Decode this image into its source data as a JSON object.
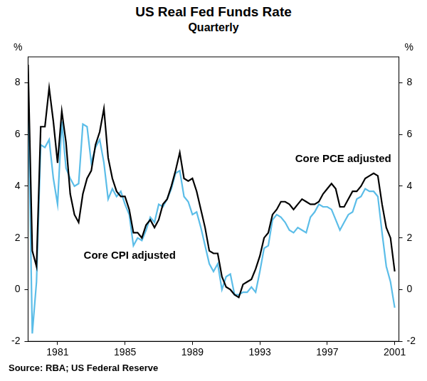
{
  "chart_data": {
    "type": "line",
    "title": "US Real Fed Funds Rate",
    "subtitle": "Quarterly",
    "source": "Source: RBA; US Federal Reserve",
    "y_label": "%",
    "y2_label": "%",
    "x": [
      1979.75,
      1980.0,
      1980.25,
      1980.5,
      1980.75,
      1981.0,
      1981.25,
      1981.5,
      1981.75,
      1982.0,
      1982.25,
      1982.5,
      1982.75,
      1983.0,
      1983.25,
      1983.5,
      1983.75,
      1984.0,
      1984.25,
      1984.5,
      1984.75,
      1985.0,
      1985.25,
      1985.5,
      1985.75,
      1986.0,
      1986.25,
      1986.5,
      1986.75,
      1987.0,
      1987.25,
      1987.5,
      1987.75,
      1988.0,
      1988.25,
      1988.5,
      1988.75,
      1989.0,
      1989.25,
      1989.5,
      1989.75,
      1990.0,
      1990.25,
      1990.5,
      1990.75,
      1991.0,
      1991.25,
      1991.5,
      1991.75,
      1992.0,
      1992.25,
      1992.5,
      1992.75,
      1993.0,
      1993.25,
      1993.5,
      1993.75,
      1994.0,
      1994.25,
      1994.5,
      1994.75,
      1995.0,
      1995.25,
      1995.5,
      1995.75,
      1996.0,
      1996.25,
      1996.5,
      1996.75,
      1997.0,
      1997.25,
      1997.5,
      1997.75,
      1998.0,
      1998.25,
      1998.5,
      1998.75,
      1999.0,
      1999.25,
      1999.5,
      1999.75,
      2000.0,
      2000.25,
      2000.5,
      2000.75,
      2001.0,
      2001.25,
      2001.5
    ],
    "series": [
      {
        "name": "Core PCE adjusted",
        "color": "#000000",
        "values": [
          8.7,
          1.5,
          0.9,
          6.3,
          6.3,
          7.8,
          6.5,
          4.9,
          6.9,
          5.7,
          3.7,
          2.9,
          2.6,
          3.7,
          4.3,
          4.6,
          5.6,
          6.1,
          7.0,
          5.1,
          4.3,
          3.8,
          3.6,
          3.6,
          3.1,
          2.2,
          2.2,
          2.0,
          2.5,
          2.7,
          2.4,
          2.7,
          3.3,
          3.5,
          4.0,
          4.6,
          5.3,
          4.3,
          4.2,
          4.3,
          3.8,
          3.1,
          2.4,
          1.5,
          1.4,
          1.4,
          0.5,
          0.1,
          0.0,
          -0.2,
          -0.3,
          0.2,
          0.3,
          0.4,
          0.8,
          1.3,
          2.0,
          2.2,
          2.9,
          3.1,
          3.4,
          3.4,
          3.3,
          3.1,
          3.3,
          3.5,
          3.4,
          3.3,
          3.3,
          3.4,
          3.7,
          3.9,
          4.1,
          3.9,
          3.2,
          3.2,
          3.5,
          3.8,
          3.8,
          4.0,
          4.3,
          4.4,
          4.5,
          4.4,
          3.3,
          2.4,
          2.0,
          0.7
        ]
      },
      {
        "name": "Core CPI adjusted",
        "color": "#5bbde8",
        "values": [
          7.6,
          -1.7,
          0.3,
          5.6,
          5.5,
          5.8,
          4.3,
          3.3,
          6.5,
          4.7,
          4.3,
          4.0,
          4.1,
          6.4,
          6.3,
          4.9,
          5.5,
          5.8,
          4.9,
          3.5,
          3.9,
          3.6,
          3.8,
          3.3,
          2.9,
          1.7,
          2.0,
          1.9,
          2.3,
          2.8,
          2.6,
          3.3,
          3.2,
          3.5,
          3.9,
          4.5,
          4.6,
          3.6,
          3.4,
          2.9,
          3.0,
          2.4,
          1.7,
          1.0,
          0.7,
          1.0,
          0.0,
          0.5,
          0.6,
          -0.2,
          -0.2,
          -0.1,
          -0.1,
          0.1,
          -0.1,
          0.7,
          1.6,
          1.7,
          2.7,
          2.9,
          2.8,
          2.6,
          2.3,
          2.2,
          2.4,
          2.3,
          2.2,
          2.8,
          3.0,
          3.3,
          3.2,
          3.2,
          3.1,
          2.7,
          2.3,
          2.6,
          2.9,
          3.0,
          3.5,
          3.6,
          3.9,
          3.8,
          3.8,
          3.6,
          2.2,
          0.9,
          0.3,
          -0.7
        ]
      }
    ],
    "xlim": [
      1979.75,
      2001.75
    ],
    "xticks": [
      {
        "value": 1981.5,
        "label": "1981"
      },
      {
        "value": 1985.5,
        "label": "1985"
      },
      {
        "value": 1989.5,
        "label": "1989"
      },
      {
        "value": 1993.5,
        "label": "1993"
      },
      {
        "value": 1997.5,
        "label": "1997"
      },
      {
        "value": 2001.5,
        "label": "2001"
      }
    ],
    "ylim": [
      -2,
      9
    ],
    "yticks": [
      -2,
      0,
      2,
      4,
      6,
      8
    ],
    "y2lim": [
      -2,
      9
    ],
    "y2ticks": [
      -2,
      0,
      2,
      4,
      6,
      8
    ],
    "grid": false
  }
}
